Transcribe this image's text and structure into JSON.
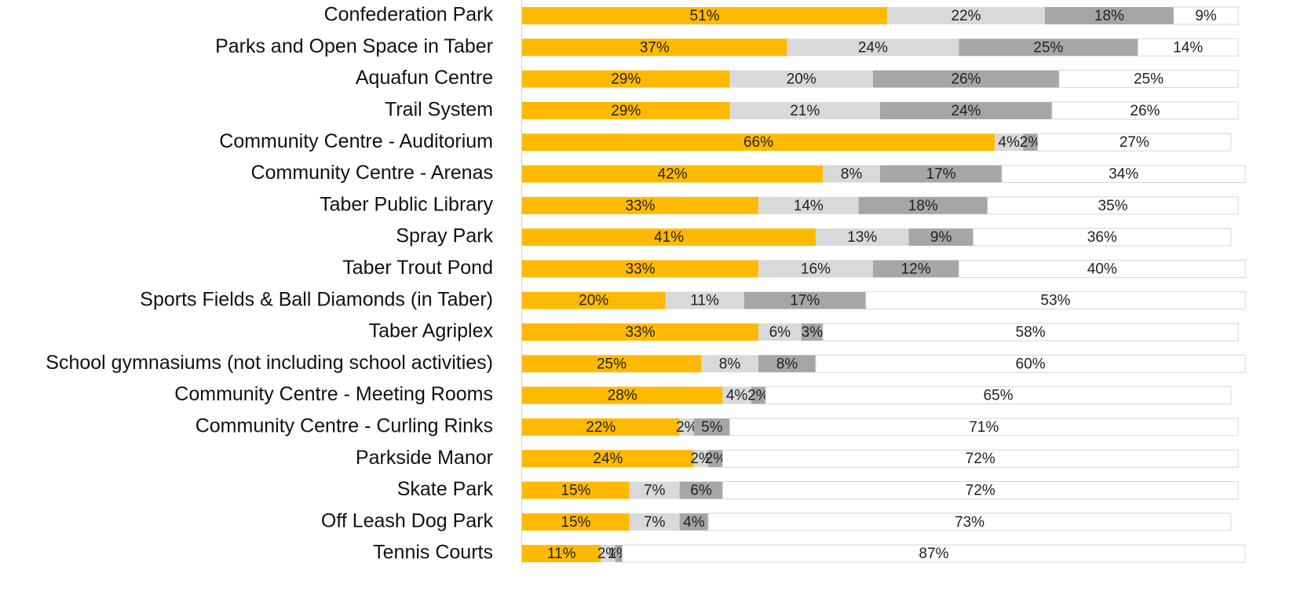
{
  "chart_data": {
    "type": "stacked-bar-horizontal",
    "categories": [
      "Confederation Park",
      "Parks and Open Space in Taber",
      "Aquafun Centre",
      "Trail System",
      "Community Centre - Auditorium",
      "Community Centre - Arenas",
      "Taber Public Library",
      "Spray Park",
      "Taber Trout Pond",
      "Sports Fields & Ball Diamonds (in Taber)",
      "Taber Agriplex",
      "School gymnasiums (not including school activities)",
      "Community Centre - Meeting Rooms",
      "Community Centre - Curling Rinks",
      "Parkside Manor",
      "Skate Park",
      "Off Leash Dog Park",
      "Tennis Courts"
    ],
    "xlim": [
      0,
      100
    ],
    "series": [
      {
        "color": "#FFB900",
        "values": [
          51,
          37,
          29,
          29,
          66,
          42,
          33,
          41,
          33,
          20,
          33,
          25,
          28,
          22,
          24,
          15,
          15,
          11
        ],
        "value_labels": [
          "51%",
          "37%",
          "29%",
          "29%",
          "66%",
          "42%",
          "33%",
          "41%",
          "33%",
          "20%",
          "33%",
          "25%",
          "28%",
          "22%",
          "24%",
          "15%",
          "15%",
          "11%"
        ]
      },
      {
        "color": "#D9D9D9",
        "values": [
          22,
          24,
          20,
          21,
          4,
          8,
          14,
          13,
          16,
          11,
          6,
          8,
          4,
          2,
          2,
          7,
          7,
          2
        ],
        "value_labels": [
          "22%",
          "24%",
          "20%",
          "21%",
          "4%",
          "8%",
          "14%",
          "13%",
          "16%",
          "11%",
          "6%",
          "8%",
          "4%",
          "2%",
          "2%",
          "7%",
          "7%",
          "2%"
        ]
      },
      {
        "color": "#A6A6A6",
        "values": [
          18,
          25,
          26,
          24,
          2,
          17,
          18,
          9,
          12,
          17,
          3,
          8,
          2,
          5,
          2,
          6,
          4,
          1
        ],
        "value_labels": [
          "18%",
          "25%",
          "26%",
          "24%",
          "2%",
          "17%",
          "18%",
          "9%",
          "12%",
          "17%",
          "3%",
          "8%",
          "2%",
          "5%",
          "2%",
          "6%",
          "4%",
          "1%"
        ]
      },
      {
        "color": "#FFFFFF",
        "values": [
          9,
          14,
          25,
          26,
          27,
          34,
          35,
          36,
          40,
          53,
          58,
          60,
          65,
          71,
          72,
          72,
          73,
          87
        ],
        "value_labels": [
          "9%",
          "14%",
          "25%",
          "26%",
          "27%",
          "34%",
          "35%",
          "36%",
          "40%",
          "53%",
          "58%",
          "60%",
          "65%",
          "71%",
          "72%",
          "72%",
          "73%",
          "87%"
        ]
      }
    ]
  }
}
